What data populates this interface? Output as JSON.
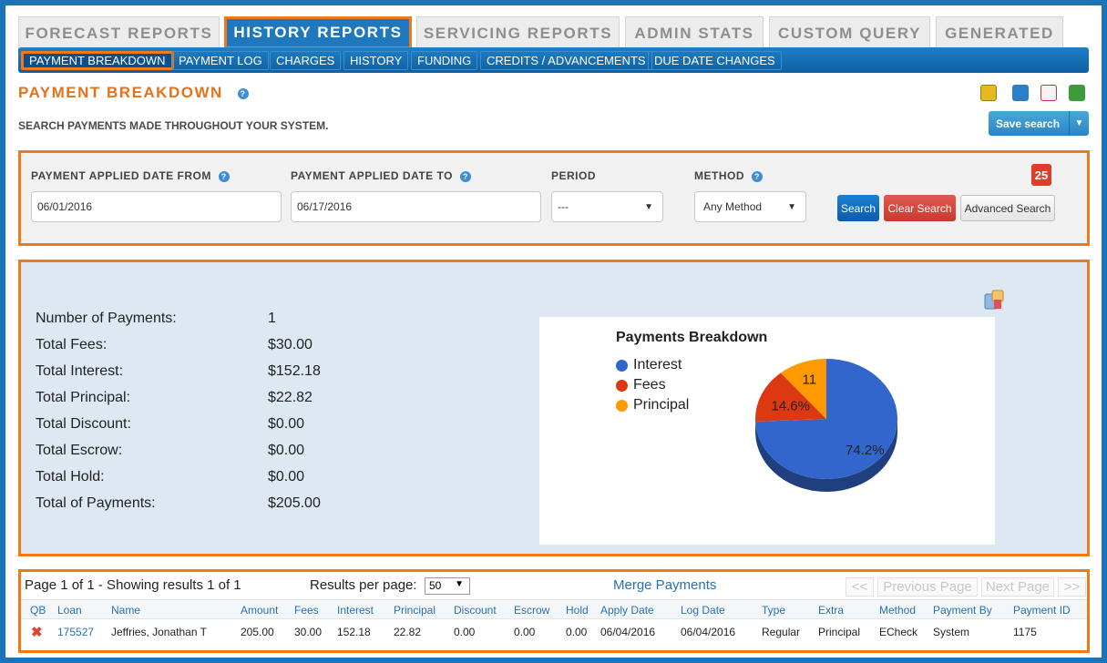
{
  "tabs": [
    {
      "label": "FORECAST REPORTS",
      "active": false
    },
    {
      "label": "HISTORY REPORTS",
      "active": true
    },
    {
      "label": "SERVICING REPORTS",
      "active": false
    },
    {
      "label": "ADMIN STATS",
      "active": false
    },
    {
      "label": "CUSTOM QUERY",
      "active": false
    },
    {
      "label": "GENERATED",
      "active": false
    }
  ],
  "subnav": [
    {
      "label": "PAYMENT BREAKDOWN",
      "active": true
    },
    {
      "label": "PAYMENT LOG",
      "active": false
    },
    {
      "label": "CHARGES",
      "active": false
    },
    {
      "label": "HISTORY",
      "active": false
    },
    {
      "label": "FUNDING",
      "active": false
    },
    {
      "label": "CREDITS / ADVANCEMENTS",
      "active": false
    },
    {
      "label": "DUE DATE CHANGES",
      "active": false
    }
  ],
  "page": {
    "title": "PAYMENT BREAKDOWN",
    "subtitle": "SEARCH PAYMENTS MADE THROUGHOUT YOUR SYSTEM.",
    "save_search": "Save search"
  },
  "search": {
    "date_from_label": "PAYMENT APPLIED DATE FROM",
    "date_from_value": "06/01/2016",
    "date_to_label": "PAYMENT APPLIED DATE TO",
    "date_to_value": "06/17/2016",
    "period_label": "PERIOD",
    "period_value": "---",
    "method_label": "METHOD",
    "method_value": "Any Method",
    "calendar_day": "25",
    "search_button": "Search",
    "clear_button": "Clear Search",
    "advanced_button": "Advanced Search"
  },
  "summary": [
    {
      "label": "Number of Payments:",
      "value": "1"
    },
    {
      "label": "Total Fees:",
      "value": "$30.00"
    },
    {
      "label": "Total Interest:",
      "value": "$152.18"
    },
    {
      "label": "Total Principal:",
      "value": "$22.82"
    },
    {
      "label": "Total Discount:",
      "value": "$0.00"
    },
    {
      "label": "Total Escrow:",
      "value": "$0.00"
    },
    {
      "label": "Total Hold:",
      "value": "$0.00"
    },
    {
      "label": "Total of Payments:",
      "value": "$205.00"
    }
  ],
  "chart_data": {
    "type": "pie",
    "title": "Payments Breakdown",
    "categories": [
      "Interest",
      "Fees",
      "Principal"
    ],
    "values": [
      74.2,
      14.6,
      11.1
    ],
    "data_labels": [
      "74.2%",
      "14.6%",
      "11"
    ],
    "colors": [
      "#3366cc",
      "#dc3912",
      "#ff9900"
    ],
    "legend": "left"
  },
  "results": {
    "page_info": "Page 1 of 1 - Showing results 1 of 1",
    "per_page_label": "Results per page:",
    "per_page_value": "50",
    "merge_link": "Merge Payments",
    "first": "<<",
    "prev": "Previous Page",
    "next": "Next Page",
    "last": ">>",
    "columns": [
      "QB",
      "Loan",
      "Name",
      "Amount",
      "Fees",
      "Interest",
      "Principal",
      "Discount",
      "Escrow",
      "Hold",
      "Apply Date",
      "Log Date",
      "Type",
      "Extra",
      "Method",
      "Payment By",
      "Payment ID"
    ],
    "rows": [
      [
        "",
        "175527",
        "Jeffries, Jonathan T",
        "205.00",
        "30.00",
        "152.18",
        "22.82",
        "0.00",
        "0.00",
        "0.00",
        "06/04/2016",
        "06/04/2016",
        "Regular",
        "Principal",
        "ECheck",
        "System",
        "1175"
      ]
    ]
  }
}
